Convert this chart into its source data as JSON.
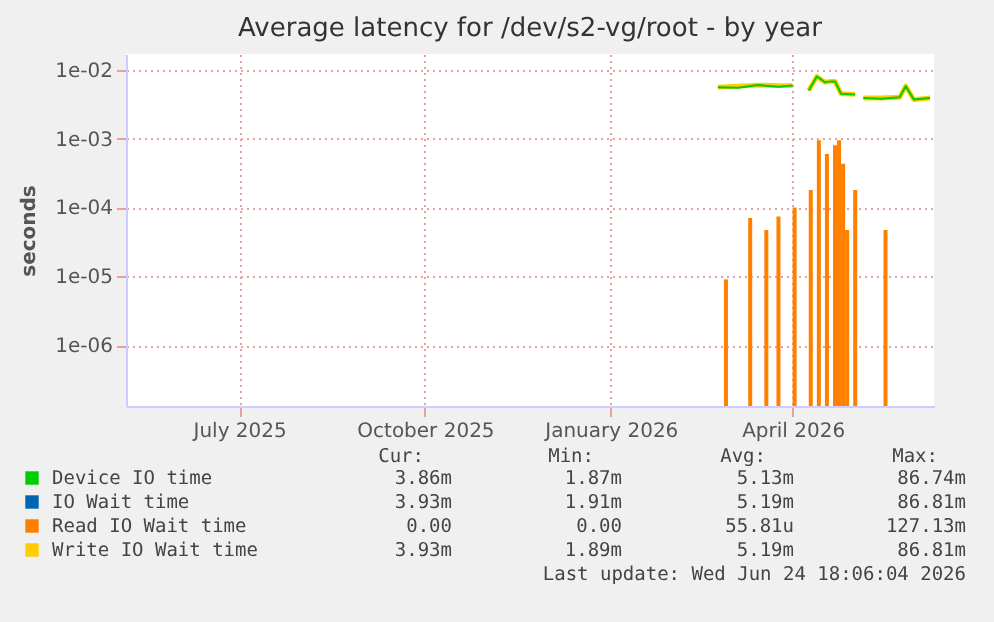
{
  "chart_data": {
    "type": "line",
    "title": "Average latency for /dev/s2-vg/root - by year",
    "ylabel": "seconds",
    "log": true,
    "grid": true,
    "legend": "bottom",
    "xlim": [
      "2025-05-06",
      "2026-06-10"
    ],
    "xticks": [
      {
        "value": "2025-07-01",
        "label": "July 2025"
      },
      {
        "value": "2025-10-01",
        "label": "October 2025"
      },
      {
        "value": "2026-01-01",
        "label": "January 2026"
      },
      {
        "value": "2026-04-01",
        "label": "April 2026"
      }
    ],
    "ylim": [
      1.3e-07,
      0.017
    ],
    "yticks": [
      {
        "value": 1e-06,
        "label": "1e-06"
      },
      {
        "value": 1e-05,
        "label": "1e-05"
      },
      {
        "value": 0.0001,
        "label": "1e-04"
      },
      {
        "value": 0.001,
        "label": "1e-03"
      },
      {
        "value": 0.01,
        "label": "1e-02"
      }
    ],
    "x": [
      "2026-02-23",
      "2026-03-05",
      "2026-03-15",
      "2026-03-25",
      "2026-04-01",
      "2026-04-05",
      "2026-04-09",
      "2026-04-13",
      "2026-04-17",
      "2026-04-20",
      "2026-04-22",
      "2026-04-25",
      "2026-05-02",
      "2026-05-04",
      "2026-05-06",
      "2026-05-15",
      "2026-05-24",
      "2026-05-27",
      "2026-05-31",
      "2026-06-08"
    ],
    "series": [
      {
        "name": "Device IO time",
        "color": "#00cc00",
        "values": [
          0.0056,
          0.0055,
          0.006,
          0.0057,
          0.0059,
          null,
          0.005,
          0.008,
          0.0066,
          0.0068,
          0.0068,
          0.0045,
          0.0044,
          null,
          0.0039,
          0.0038,
          0.004,
          0.0058,
          0.0037,
          0.0039
        ]
      },
      {
        "name": "IO Wait time",
        "color": "#0066b3",
        "values": [
          null,
          null,
          null,
          null,
          null,
          null,
          null,
          null,
          null,
          null,
          null,
          null,
          null,
          null,
          null,
          null,
          null,
          null,
          null,
          null
        ]
      },
      {
        "name": "Read IO Wait time",
        "color": "#ff8000",
        "type": "bar",
        "x": [
          "2026-02-26",
          "2026-03-10",
          "2026-03-18",
          "2026-03-24",
          "2026-04-01",
          "2026-04-09",
          "2026-04-13",
          "2026-04-17",
          "2026-04-21",
          "2026-04-23",
          "2026-04-25",
          "2026-04-27",
          "2026-05-01",
          "2026-05-16"
        ],
        "values": [
          9e-06,
          7e-05,
          4.7e-05,
          7.4e-05,
          0.0001,
          0.00018,
          0.00095,
          0.0006,
          0.0008,
          0.00095,
          0.00043,
          4.7e-05,
          0.00018,
          4.7e-05
        ]
      },
      {
        "name": "Write IO Wait time",
        "color": "#ffcc00",
        "values": [
          0.0056,
          0.0058,
          0.006,
          0.0059,
          0.0059,
          null,
          0.005,
          0.008,
          0.0066,
          0.0068,
          0.0068,
          0.0045,
          0.0044,
          null,
          0.0039,
          0.0039,
          0.004,
          0.0058,
          0.0037,
          0.0039
        ]
      }
    ],
    "annotations": [
      "Cur:",
      "Min:",
      "Avg:",
      "Max:",
      "3.86m",
      "1.87m",
      "5.13m",
      "86.74m",
      "3.93m",
      "1.91m",
      "5.19m",
      "86.81m",
      "0.00",
      "0.00",
      "55.81u",
      "127.13m",
      "3.93m",
      "1.89m",
      "5.19m",
      "86.81m",
      "Last update: Wed Jun 24 18:06:04 2026"
    ]
  }
}
